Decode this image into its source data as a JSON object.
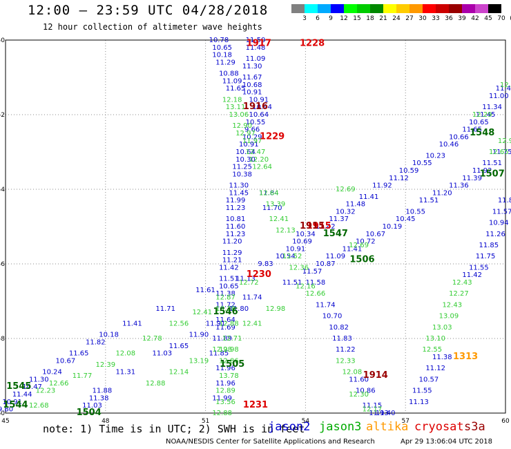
{
  "title": "12:00 — 23:59 UTC 04/28/2018",
  "subtitle": "12 hour collection of altimeter wave heights",
  "colorbar": {
    "labels": [
      "3",
      "6",
      "9",
      "12",
      "15",
      "18",
      "21",
      "24",
      "27",
      "30",
      "33",
      "36",
      "39",
      "42",
      "45",
      "70",
      "(ft)"
    ],
    "colors": [
      "#808080",
      "#00ffff",
      "#00aaff",
      "#0000ff",
      "#00ff00",
      "#00cc00",
      "#008800",
      "#ffff00",
      "#ffcc00",
      "#ff9900",
      "#ff0000",
      "#cc0000",
      "#990000",
      "#aa00aa",
      "#cc44cc",
      "#000000"
    ]
  },
  "note": "note: 1) Time is in UTC; 2) SWH is in feet",
  "legend": [
    {
      "label": "jason2",
      "color": "#0000cc"
    },
    {
      "label": "jason3",
      "color": "#00aa00"
    },
    {
      "label": "altika",
      "color": "#ff9900"
    },
    {
      "label": "cryosat",
      "color": "#dd0000"
    },
    {
      "label": "s3a",
      "color": "#990000"
    }
  ],
  "credit": "NOAA/NESDIS Center for Satellite Applications and Research",
  "timestamp": "Apr 29 13:06:04 UTC 2018",
  "chart_data": {
    "type": "scatter",
    "xlim": [
      45,
      60
    ],
    "ylim": [
      -60,
      -50
    ],
    "xticks": [
      "45",
      "48",
      "51",
      "54",
      "57",
      "60"
    ],
    "yticks": [
      "-50",
      "-52",
      "-54",
      "-56",
      "-58",
      "-60"
    ],
    "grid": true,
    "series": [
      {
        "name": "jason2",
        "color": "#0000cc",
        "points": [
          [
            51.4,
            -50.0,
            "10.78"
          ],
          [
            51.5,
            -50.2,
            "10.65"
          ],
          [
            51.5,
            -50.4,
            "10.18"
          ],
          [
            51.6,
            -50.6,
            "11.29"
          ],
          [
            51.7,
            -50.9,
            "10.88"
          ],
          [
            51.8,
            -51.1,
            "11.09"
          ],
          [
            51.9,
            -51.3,
            "11.65"
          ],
          [
            52.6,
            -51.6,
            "10.91"
          ],
          [
            52.7,
            -51.8,
            "10.94"
          ],
          [
            52.6,
            -52.0,
            "10.64"
          ],
          [
            52.5,
            -52.2,
            "10.55"
          ],
          [
            52.4,
            -52.4,
            "9.66"
          ],
          [
            52.4,
            -52.6,
            "10.29"
          ],
          [
            52.3,
            -52.8,
            "10.91"
          ],
          [
            52.2,
            -53.0,
            "10.64"
          ],
          [
            52.2,
            -53.2,
            "10.30"
          ],
          [
            52.1,
            -53.4,
            "11.25"
          ],
          [
            52.1,
            -53.6,
            "10.38"
          ],
          [
            52.0,
            -53.9,
            "11.30"
          ],
          [
            52.0,
            -54.1,
            "11.45"
          ],
          [
            51.9,
            -54.3,
            "11.99"
          ],
          [
            51.9,
            -54.5,
            "11.23"
          ],
          [
            51.9,
            -54.8,
            "10.81"
          ],
          [
            51.9,
            -55.0,
            "11.60"
          ],
          [
            51.9,
            -55.2,
            "11.23"
          ],
          [
            51.8,
            -55.4,
            "11.20"
          ],
          [
            51.8,
            -55.7,
            "11.29"
          ],
          [
            51.8,
            -55.9,
            "11.21"
          ],
          [
            51.7,
            -56.1,
            "11.42"
          ],
          [
            51.7,
            -56.4,
            "11.51"
          ],
          [
            51.7,
            -56.6,
            "10.65"
          ],
          [
            51.6,
            -56.8,
            "11.38"
          ],
          [
            51.6,
            -57.1,
            "11.72"
          ],
          [
            51.6,
            -57.5,
            "11.64"
          ],
          [
            51.6,
            -57.7,
            "11.69"
          ],
          [
            51.5,
            -58.0,
            "11.89"
          ],
          [
            51.4,
            -58.4,
            "11.85"
          ],
          [
            51.6,
            -58.8,
            "11.96"
          ],
          [
            51.6,
            -59.2,
            "11.96"
          ],
          [
            51.5,
            -59.6,
            "11.99"
          ],
          [
            52.5,
            -50.0,
            "11.50"
          ],
          [
            52.5,
            -50.2,
            "11.48"
          ],
          [
            52.5,
            -50.5,
            "11.09"
          ],
          [
            52.4,
            -50.7,
            "11.30"
          ],
          [
            52.4,
            -51.0,
            "11.67"
          ],
          [
            52.4,
            -51.2,
            "10.68"
          ],
          [
            52.4,
            -51.4,
            "10.91"
          ],
          [
            53.0,
            -54.5,
            "11.70"
          ],
          [
            52.9,
            -54.1,
            "11.84"
          ],
          [
            45.0,
            -59.9,
            "9.80"
          ],
          [
            45.2,
            -59.7,
            "10.91"
          ],
          [
            45.5,
            -59.5,
            "11.44"
          ],
          [
            45.8,
            -59.3,
            "10.47"
          ],
          [
            46.0,
            -59.1,
            "11.30"
          ],
          [
            46.4,
            -58.9,
            "10.24"
          ],
          [
            46.8,
            -58.6,
            "10.67"
          ],
          [
            47.2,
            -58.4,
            "11.65"
          ],
          [
            47.7,
            -58.1,
            "11.82"
          ],
          [
            48.1,
            -57.9,
            "10.18"
          ],
          [
            48.8,
            -57.6,
            "11.41"
          ],
          [
            49.8,
            -57.2,
            "11.71"
          ],
          [
            51.0,
            -56.7,
            "11.61"
          ],
          [
            52.2,
            -56.4,
            "11.13"
          ],
          [
            52.8,
            -56.0,
            "9.83"
          ],
          [
            53.4,
            -55.8,
            "10.54"
          ],
          [
            53.7,
            -55.6,
            "10.91"
          ],
          [
            53.9,
            -55.4,
            "10.69"
          ],
          [
            54.0,
            -55.2,
            "10.34"
          ],
          [
            54.6,
            -55.0,
            "11.42"
          ],
          [
            55.0,
            -54.8,
            "11.37"
          ],
          [
            55.2,
            -54.6,
            "10.32"
          ],
          [
            55.5,
            -54.4,
            "11.48"
          ],
          [
            55.9,
            -54.2,
            "11.41"
          ],
          [
            56.3,
            -53.9,
            "11.92"
          ],
          [
            56.8,
            -53.7,
            "11.12"
          ],
          [
            57.1,
            -53.5,
            "10.59"
          ],
          [
            57.5,
            -53.3,
            "10.55"
          ],
          [
            57.9,
            -53.1,
            "10.23"
          ],
          [
            58.3,
            -52.8,
            "10.46"
          ],
          [
            58.6,
            -52.6,
            "10.66"
          ],
          [
            59.0,
            -52.4,
            "11.65"
          ],
          [
            59.2,
            -52.2,
            "10.65"
          ],
          [
            59.4,
            -52.0,
            "11.45"
          ],
          [
            59.6,
            -51.8,
            "11.34"
          ],
          [
            59.8,
            -51.5,
            "11.00"
          ],
          [
            60.0,
            -51.3,
            "11.45"
          ],
          [
            47.6,
            -59.8,
            "11.03"
          ],
          [
            47.8,
            -59.6,
            "11.38"
          ],
          [
            47.9,
            -59.4,
            "11.88"
          ],
          [
            48.6,
            -58.9,
            "11.31"
          ],
          [
            49.7,
            -58.4,
            "11.03"
          ],
          [
            50.2,
            -58.2,
            "11.65"
          ],
          [
            50.8,
            -57.9,
            "11.90"
          ],
          [
            51.3,
            -57.6,
            "11.91"
          ],
          [
            52.0,
            -57.2,
            "11.80"
          ],
          [
            52.4,
            -56.9,
            "11.74"
          ],
          [
            53.6,
            -56.5,
            "11.51"
          ],
          [
            54.2,
            -56.2,
            "11.57"
          ],
          [
            54.6,
            -56.0,
            "10.87"
          ],
          [
            54.9,
            -55.8,
            "11.09"
          ],
          [
            55.4,
            -55.6,
            "11.41"
          ],
          [
            55.8,
            -55.4,
            "10.72"
          ],
          [
            56.1,
            -55.2,
            "10.67"
          ],
          [
            56.6,
            -55.0,
            "10.19"
          ],
          [
            57.0,
            -54.8,
            "10.45"
          ],
          [
            57.3,
            -54.6,
            "10.55"
          ],
          [
            57.7,
            -54.3,
            "11.51"
          ],
          [
            58.1,
            -54.1,
            "11.20"
          ],
          [
            58.6,
            -53.9,
            "11.36"
          ],
          [
            59.0,
            -53.7,
            "11.39"
          ],
          [
            59.3,
            -53.5,
            "11.92"
          ],
          [
            59.6,
            -53.3,
            "11.51"
          ],
          [
            59.9,
            -53.0,
            "11.75"
          ],
          [
            60.0,
            -54.3,
            "11.8"
          ],
          [
            59.9,
            -54.6,
            "11.57"
          ],
          [
            59.8,
            -54.9,
            "10.94"
          ],
          [
            59.7,
            -55.2,
            "11.26"
          ],
          [
            59.5,
            -55.5,
            "11.85"
          ],
          [
            59.4,
            -55.8,
            "11.75"
          ],
          [
            59.2,
            -56.1,
            "11.55"
          ],
          [
            59.0,
            -56.3,
            "11.42"
          ],
          [
            54.3,
            -56.5,
            "11.58"
          ],
          [
            54.6,
            -57.1,
            "11.74"
          ],
          [
            54.8,
            -57.4,
            "10.70"
          ],
          [
            55.0,
            -57.7,
            "10.82"
          ],
          [
            55.1,
            -58.0,
            "11.83"
          ],
          [
            55.2,
            -58.3,
            "11.22"
          ],
          [
            55.6,
            -59.1,
            "11.60"
          ],
          [
            55.8,
            -59.4,
            "10.86"
          ],
          [
            56.0,
            -59.8,
            "11.15"
          ],
          [
            56.2,
            -60.0,
            "11.93"
          ],
          [
            58.1,
            -58.5,
            "11.38"
          ],
          [
            57.9,
            -58.8,
            "11.12"
          ],
          [
            57.7,
            -59.1,
            "10.57"
          ],
          [
            57.5,
            -59.4,
            "11.55"
          ],
          [
            57.4,
            -59.7,
            "11.13"
          ],
          [
            56.4,
            -60.0,
            "11.40"
          ]
        ]
      },
      {
        "name": "jason3",
        "color": "#33cc33",
        "points": [
          [
            51.8,
            -51.6,
            "12.18"
          ],
          [
            51.9,
            -51.8,
            "13.11"
          ],
          [
            52.0,
            -52.0,
            "13.06"
          ],
          [
            52.1,
            -52.3,
            "12.90"
          ],
          [
            52.2,
            -52.5,
            "12.97"
          ],
          [
            52.4,
            -52.7,
            "11.97"
          ],
          [
            52.5,
            -53.0,
            "12.47"
          ],
          [
            52.6,
            -53.2,
            "12.20"
          ],
          [
            52.7,
            -53.4,
            "12.64"
          ],
          [
            52.9,
            -54.1,
            "12.64"
          ],
          [
            53.1,
            -54.4,
            "13.39"
          ],
          [
            53.2,
            -54.8,
            "12.41"
          ],
          [
            53.4,
            -55.1,
            "12.13"
          ],
          [
            53.6,
            -55.8,
            "12.52"
          ],
          [
            53.8,
            -56.1,
            "12.36"
          ],
          [
            54.0,
            -56.6,
            "12.16"
          ],
          [
            54.3,
            -56.8,
            "12.66"
          ],
          [
            46.0,
            -59.8,
            "12.68"
          ],
          [
            46.2,
            -59.4,
            "12.23"
          ],
          [
            46.6,
            -59.2,
            "12.66"
          ],
          [
            47.3,
            -59.0,
            "11.77"
          ],
          [
            48.0,
            -58.7,
            "12.39"
          ],
          [
            48.6,
            -58.4,
            "12.08"
          ],
          [
            49.4,
            -58.0,
            "12.78"
          ],
          [
            50.2,
            -57.6,
            "12.56"
          ],
          [
            50.9,
            -57.3,
            "12.41"
          ],
          [
            51.6,
            -56.9,
            "12.87"
          ],
          [
            52.3,
            -56.5,
            "12.72"
          ],
          [
            49.5,
            -59.2,
            "12.88"
          ],
          [
            50.2,
            -58.9,
            "12.14"
          ],
          [
            50.8,
            -58.6,
            "13.19"
          ],
          [
            51.5,
            -58.3,
            "12.98"
          ],
          [
            51.8,
            -58.0,
            "12.71"
          ],
          [
            52.4,
            -57.6,
            "12.41"
          ],
          [
            53.1,
            -57.2,
            "12.98"
          ],
          [
            51.6,
            -57.2,
            "13.38"
          ],
          [
            51.7,
            -57.6,
            "12.88"
          ],
          [
            51.7,
            -58.3,
            "12.98"
          ],
          [
            51.7,
            -58.6,
            "12.86"
          ],
          [
            51.7,
            -59.0,
            "13.78"
          ],
          [
            51.6,
            -59.4,
            "12.89"
          ],
          [
            51.6,
            -59.7,
            "13.56"
          ],
          [
            51.5,
            -60.0,
            "12.88"
          ],
          [
            55.6,
            -55.5,
            "12.69"
          ],
          [
            55.2,
            -54.0,
            "12.69"
          ],
          [
            59.3,
            -52.0,
            "12.29"
          ],
          [
            59.8,
            -53.0,
            "12.65"
          ],
          [
            60.0,
            -52.7,
            "12.9"
          ],
          [
            60.0,
            -51.2,
            "12."
          ],
          [
            58.7,
            -56.5,
            "12.43"
          ],
          [
            58.6,
            -56.8,
            "12.27"
          ],
          [
            58.4,
            -57.1,
            "12.43"
          ],
          [
            58.3,
            -57.4,
            "13.09"
          ],
          [
            58.1,
            -57.7,
            "13.03"
          ],
          [
            57.9,
            -58.0,
            "13.10"
          ],
          [
            57.8,
            -58.3,
            "12.55"
          ],
          [
            55.2,
            -58.6,
            "12.33"
          ],
          [
            55.4,
            -58.9,
            "12.08"
          ],
          [
            55.6,
            -59.5,
            "12.30"
          ],
          [
            56.0,
            -59.9,
            "12.17"
          ]
        ]
      },
      {
        "name": "altika",
        "color": "#ff9900",
        "points": [
          [
            58.8,
            -58.5,
            "1313"
          ]
        ]
      },
      {
        "name": "cryosat",
        "color": "#dd0000",
        "points": [
          [
            52.6,
            -50.1,
            "1917"
          ],
          [
            54.2,
            -50.1,
            "1228"
          ],
          [
            53.0,
            -52.6,
            "1229"
          ],
          [
            52.6,
            -56.3,
            "1230"
          ],
          [
            52.5,
            -59.8,
            "1231"
          ],
          [
            54.4,
            -55.0,
            "1915"
          ]
        ]
      },
      {
        "name": "s3a",
        "color": "#990000",
        "points": [
          [
            52.5,
            -51.8,
            "1916"
          ],
          [
            54.2,
            -55.0,
            "1915"
          ],
          [
            56.1,
            -59.0,
            "1914"
          ]
        ]
      },
      {
        "name": "pass-time",
        "color": "#006600",
        "points": [
          [
            51.6,
            -57.3,
            "1546"
          ],
          [
            51.8,
            -58.7,
            "1505"
          ],
          [
            45.4,
            -59.3,
            "1545"
          ],
          [
            45.3,
            -59.8,
            "1544"
          ],
          [
            47.5,
            -60.0,
            "1504"
          ],
          [
            54.9,
            -55.2,
            "1547"
          ],
          [
            55.7,
            -55.9,
            "1506"
          ],
          [
            59.3,
            -52.5,
            "1548"
          ],
          [
            59.6,
            -53.6,
            "1507"
          ]
        ]
      }
    ]
  }
}
